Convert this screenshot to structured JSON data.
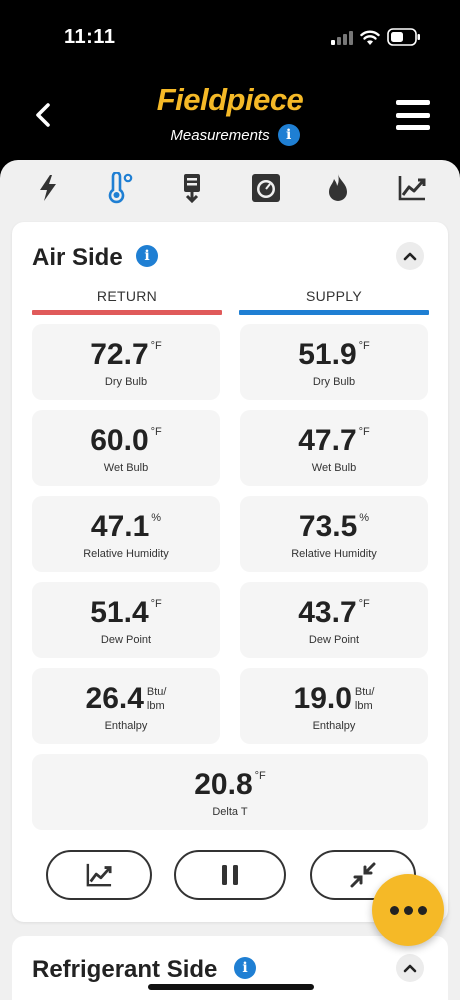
{
  "status": {
    "time": "11:11"
  },
  "header": {
    "brand": "Fieldpiece",
    "subtitle": "Measurements",
    "info": "i"
  },
  "tabs": [
    {
      "name": "electrical",
      "icon": "lightning-icon",
      "active": false
    },
    {
      "name": "temperature",
      "icon": "thermometer-icon",
      "active": true
    },
    {
      "name": "airflow",
      "icon": "duct-icon",
      "active": false
    },
    {
      "name": "pressure",
      "icon": "gauge-icon",
      "active": false
    },
    {
      "name": "combustion",
      "icon": "flame-icon",
      "active": false
    },
    {
      "name": "trends",
      "icon": "chart-icon",
      "active": false
    }
  ],
  "air_side": {
    "title": "Air Side",
    "return_label": "RETURN",
    "supply_label": "SUPPLY",
    "return_color": "#e05a5a",
    "supply_color": "#1f7fd3",
    "return": [
      {
        "value": "72.7",
        "unit": "°F",
        "label": "Dry Bulb"
      },
      {
        "value": "60.0",
        "unit": "°F",
        "label": "Wet Bulb"
      },
      {
        "value": "47.1",
        "unit": "%",
        "label": "Relative Humidity"
      },
      {
        "value": "51.4",
        "unit": "°F",
        "label": "Dew Point"
      },
      {
        "value": "26.4",
        "unit_top": "Btu/",
        "unit_bottom": "lbm",
        "label": "Enthalpy"
      }
    ],
    "supply": [
      {
        "value": "51.9",
        "unit": "°F",
        "label": "Dry Bulb"
      },
      {
        "value": "47.7",
        "unit": "°F",
        "label": "Wet Bulb"
      },
      {
        "value": "73.5",
        "unit": "%",
        "label": "Relative Humidity"
      },
      {
        "value": "43.7",
        "unit": "°F",
        "label": "Dew Point"
      },
      {
        "value": "19.0",
        "unit_top": "Btu/",
        "unit_bottom": "lbm",
        "label": "Enthalpy"
      }
    ],
    "delta": {
      "value": "20.8",
      "unit": "°F",
      "label": "Delta T"
    }
  },
  "refrigerant_side": {
    "title": "Refrigerant Side"
  }
}
